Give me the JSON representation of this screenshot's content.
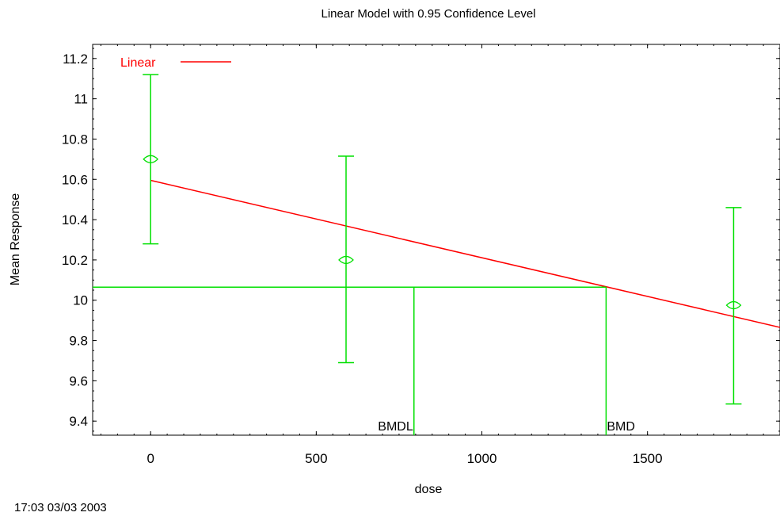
{
  "chart_data": {
    "type": "line",
    "title": "Linear Model with 0.95 Confidence Level",
    "xlabel": "dose",
    "ylabel": "Mean Response",
    "xlim": [
      -175,
      1900
    ],
    "ylim": [
      9.33,
      11.27
    ],
    "x_ticks": [
      0,
      500,
      1000,
      1500
    ],
    "x_tick_labels": [
      "0",
      "500",
      "1000",
      "1500"
    ],
    "y_ticks": [
      9.4,
      9.6,
      9.8,
      10.0,
      10.2,
      10.4,
      10.6,
      10.8,
      11.0,
      11.2
    ],
    "y_tick_labels": [
      "9.4",
      "9.6",
      "9.8",
      "10",
      "10.2",
      "10.4",
      "10.6",
      "10.8",
      "11",
      "11.2"
    ],
    "legend": {
      "placement": "top-left",
      "entries": [
        {
          "label": "Linear",
          "color": "#ff0000"
        }
      ]
    },
    "series": [
      {
        "name": "Linear",
        "color": "#ff0000",
        "x": [
          0,
          1900
        ],
        "y": [
          10.595,
          9.865
        ]
      }
    ],
    "observations": {
      "color": "#00e000",
      "points": [
        {
          "x": 0,
          "y": 10.7,
          "lower": 10.28,
          "upper": 11.12
        },
        {
          "x": 590,
          "y": 10.2,
          "lower": 9.69,
          "upper": 10.715
        },
        {
          "x": 1760,
          "y": 9.975,
          "lower": 9.485,
          "upper": 10.46
        }
      ]
    },
    "benchmark": {
      "bmr_response": 10.065,
      "bmdl": {
        "label": "BMDL",
        "x": 795
      },
      "bmd": {
        "label": "BMD",
        "x": 1375
      }
    },
    "grid": false,
    "timestamp": "17:03 03/03 2003"
  }
}
